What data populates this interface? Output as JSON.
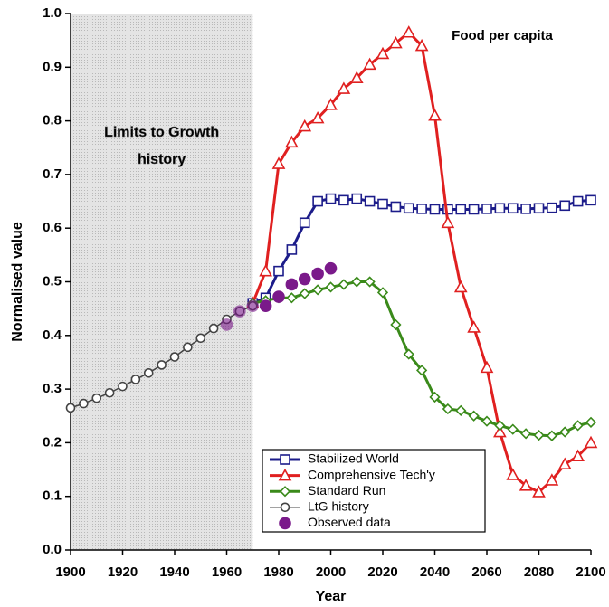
{
  "chart_data": {
    "type": "line",
    "title": "Food per capita",
    "xlabel": "Year",
    "ylabel": "Normalised value",
    "annotation_lines": [
      "Limits to Growth",
      "history"
    ],
    "history_span": [
      1900,
      1970
    ],
    "xlim": [
      1900,
      2100
    ],
    "xticks": [
      1900,
      1920,
      1940,
      1960,
      1980,
      2000,
      2020,
      2040,
      2060,
      2080,
      2100
    ],
    "ylim": [
      0,
      1
    ],
    "yticks": [
      {
        "value": 0,
        "label": "0.0"
      },
      0.1,
      0.2,
      0.3,
      0.4,
      0.5,
      0.6,
      0.7,
      0.8,
      0.9,
      {
        "value": 1,
        "label": "1.0"
      }
    ],
    "legend": "lower center",
    "series": [
      {
        "name": "Stabilized World",
        "color": "#1c1c8a",
        "marker": "square",
        "line": true,
        "x": [
          1970,
          1975,
          1980,
          1985,
          1990,
          1995,
          2000,
          2005,
          2010,
          2015,
          2020,
          2025,
          2030,
          2035,
          2040,
          2045,
          2050,
          2055,
          2060,
          2065,
          2070,
          2075,
          2080,
          2085,
          2090,
          2095,
          2100
        ],
        "values": [
          0.46,
          0.47,
          0.52,
          0.56,
          0.61,
          0.65,
          0.655,
          0.652,
          0.655,
          0.65,
          0.645,
          0.64,
          0.637,
          0.636,
          0.635,
          0.635,
          0.635,
          0.635,
          0.636,
          0.637,
          0.637,
          0.636,
          0.637,
          0.638,
          0.642,
          0.65,
          0.652
        ]
      },
      {
        "name": "Comprehensive Tech'y",
        "color": "#e02020",
        "marker": "triangle",
        "line": true,
        "x": [
          1970,
          1975,
          1980,
          1985,
          1990,
          1995,
          2000,
          2005,
          2010,
          2015,
          2020,
          2025,
          2030,
          2035,
          2040,
          2045,
          2050,
          2055,
          2060,
          2065,
          2070,
          2075,
          2080,
          2085,
          2090,
          2095,
          2100
        ],
        "values": [
          0.46,
          0.52,
          0.72,
          0.76,
          0.79,
          0.805,
          0.83,
          0.86,
          0.88,
          0.905,
          0.925,
          0.945,
          0.965,
          0.94,
          0.81,
          0.61,
          0.49,
          0.415,
          0.34,
          0.22,
          0.14,
          0.12,
          0.108,
          0.13,
          0.16,
          0.175,
          0.2
        ]
      },
      {
        "name": "Standard Run",
        "color": "#3a8a1a",
        "marker": "diamond",
        "line": true,
        "x": [
          1970,
          1975,
          1980,
          1985,
          1990,
          1995,
          2000,
          2005,
          2010,
          2015,
          2020,
          2025,
          2030,
          2035,
          2040,
          2045,
          2050,
          2055,
          2060,
          2065,
          2070,
          2075,
          2080,
          2085,
          2090,
          2095,
          2100
        ],
        "values": [
          0.46,
          0.465,
          0.47,
          0.47,
          0.478,
          0.485,
          0.49,
          0.495,
          0.5,
          0.5,
          0.48,
          0.42,
          0.365,
          0.335,
          0.285,
          0.263,
          0.26,
          0.25,
          0.24,
          0.232,
          0.225,
          0.217,
          0.214,
          0.213,
          0.22,
          0.232,
          0.238
        ]
      },
      {
        "name": "LtG history",
        "color": "#444444",
        "marker": "circle",
        "line": true,
        "x": [
          1900,
          1905,
          1910,
          1915,
          1920,
          1925,
          1930,
          1935,
          1940,
          1945,
          1950,
          1955,
          1960,
          1965,
          1970
        ],
        "values": [
          0.265,
          0.273,
          0.283,
          0.293,
          0.305,
          0.318,
          0.33,
          0.345,
          0.36,
          0.378,
          0.395,
          0.413,
          0.43,
          0.445,
          0.455
        ]
      },
      {
        "name": "Observed data",
        "color": "#7a1a8a",
        "marker": "dot",
        "line": false,
        "x": [
          1960,
          1965,
          1970,
          1975,
          1980,
          1985,
          1990,
          1995,
          2000
        ],
        "values": [
          0.42,
          0.445,
          0.455,
          0.455,
          0.472,
          0.495,
          0.505,
          0.515,
          0.525
        ]
      }
    ]
  }
}
